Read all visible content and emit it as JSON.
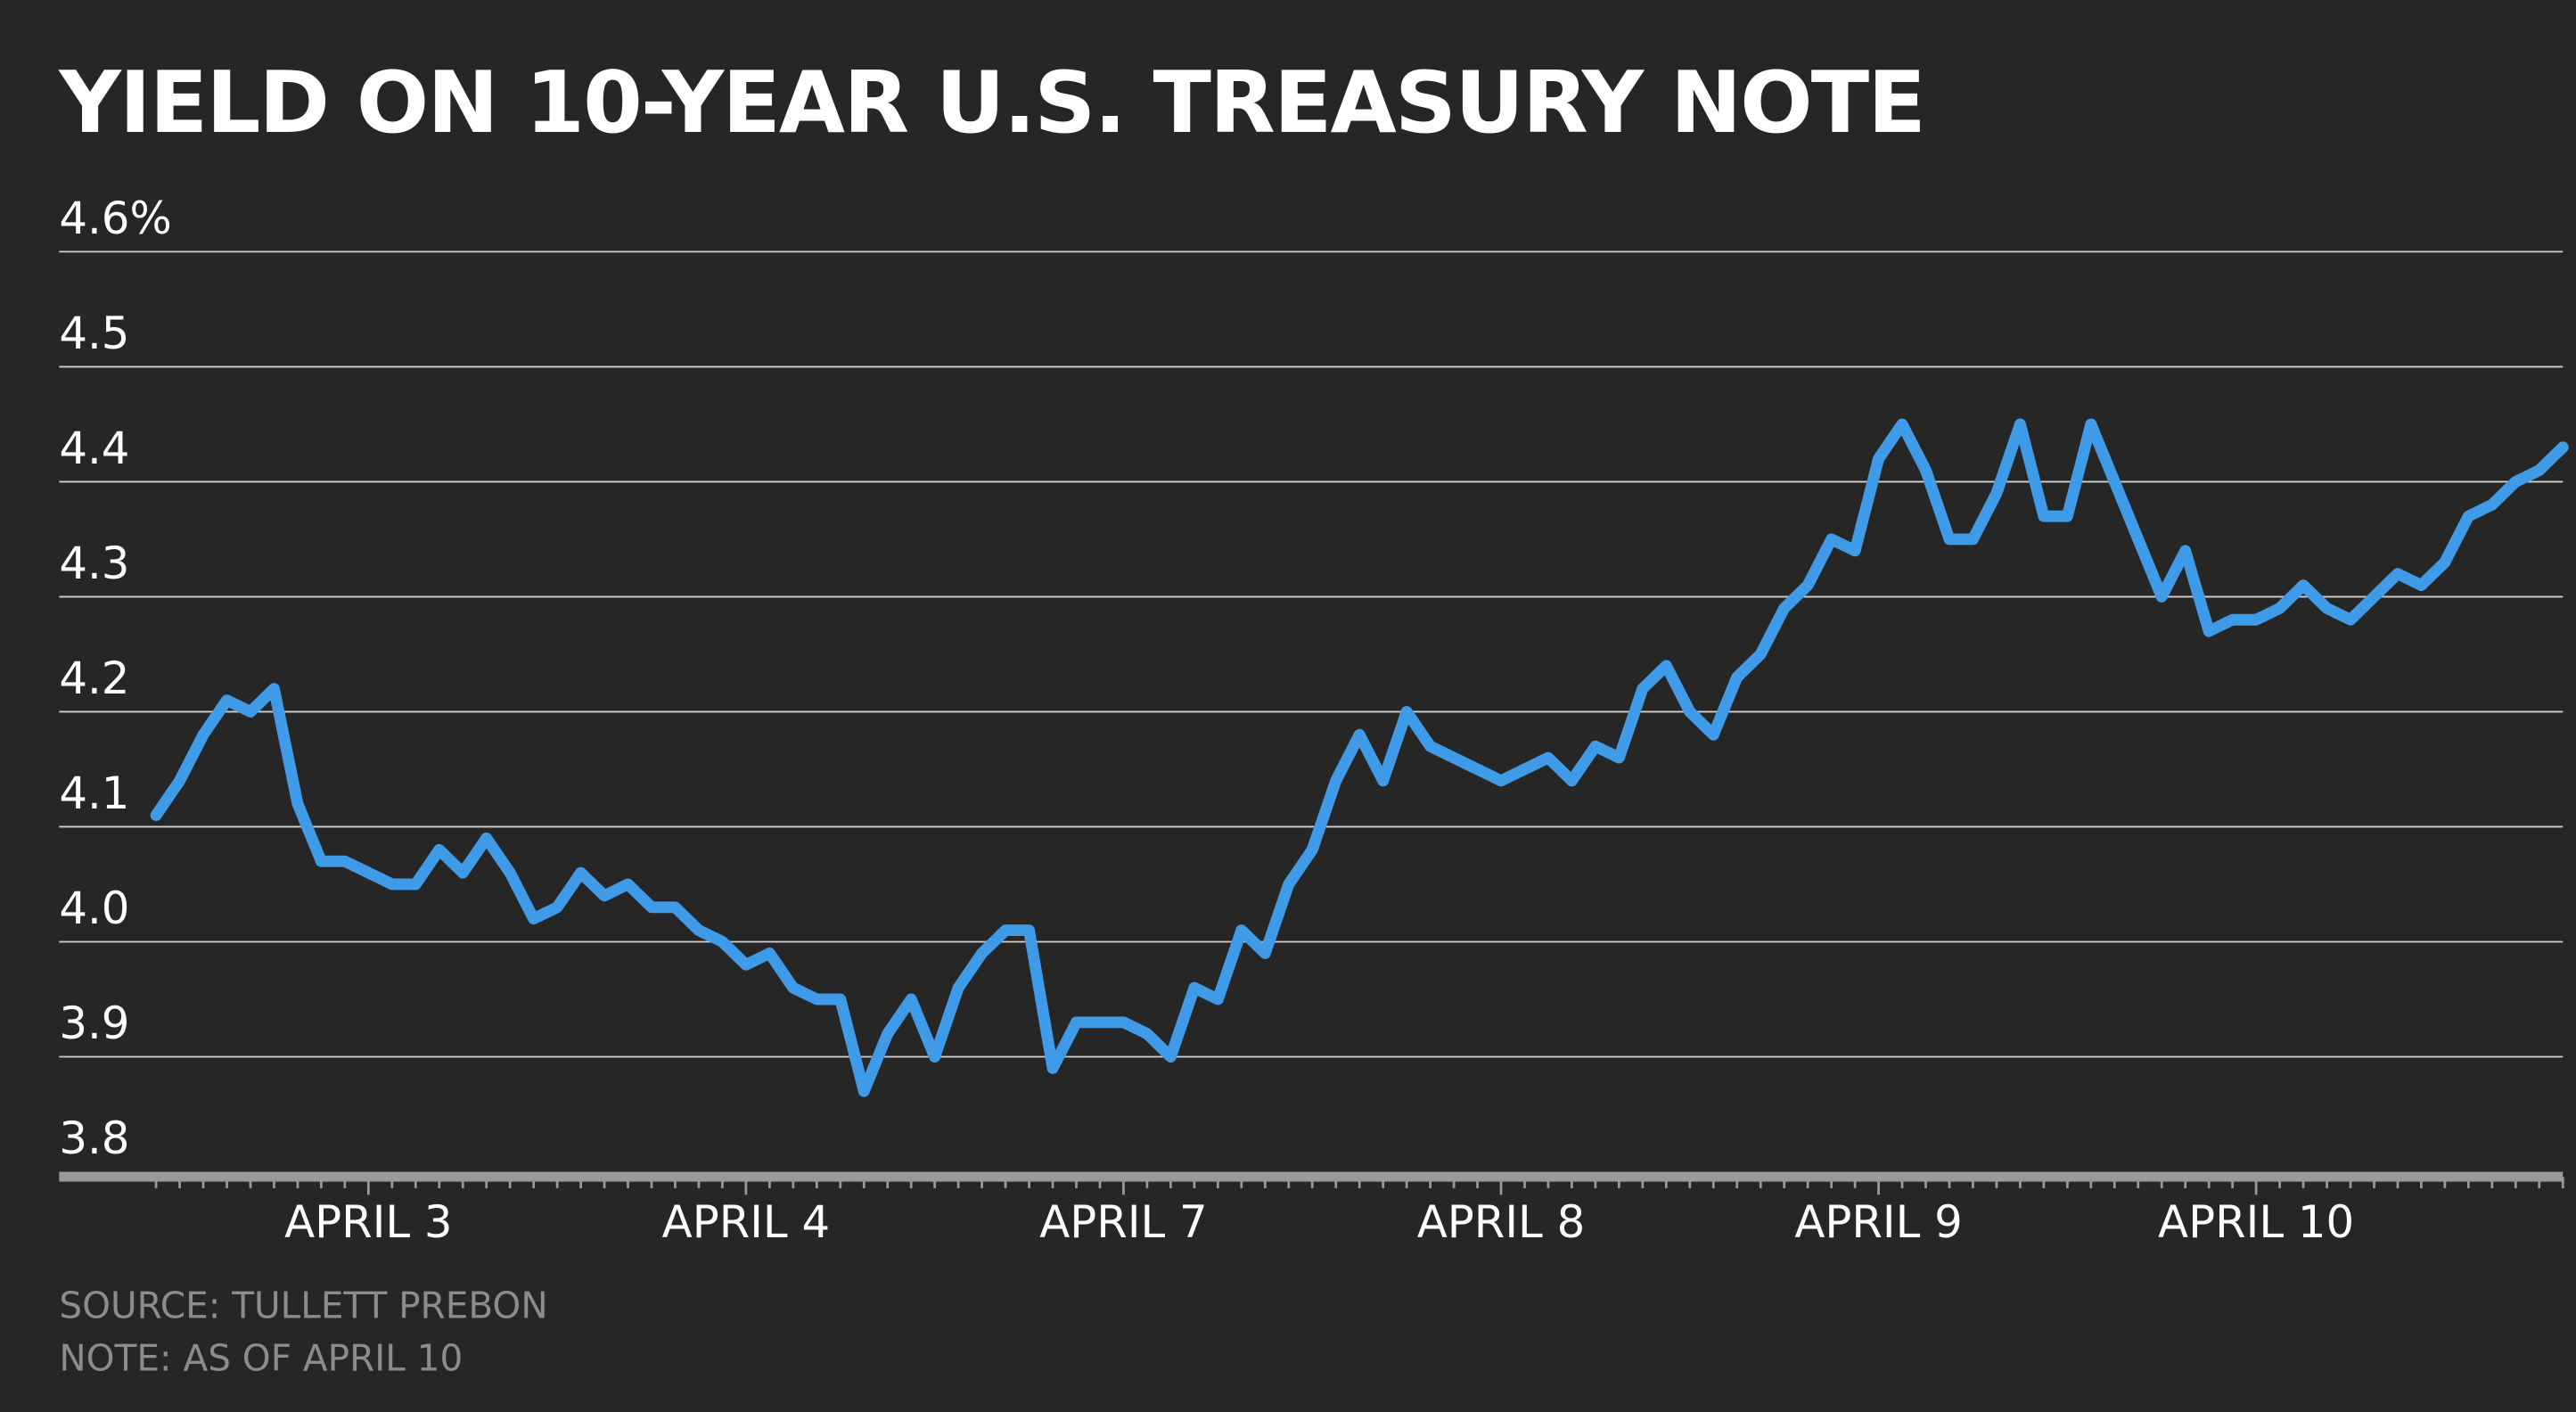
{
  "chart_data": {
    "type": "line",
    "title": "YIELD ON 10-YEAR U.S. TREASURY NOTE",
    "source": "SOURCE: TULLETT PREBON",
    "note": "NOTE: AS OF APRIL 10",
    "categories": [
      null,
      null,
      null,
      null,
      null,
      null,
      null,
      null,
      null,
      "APRIL 3",
      null,
      null,
      null,
      null,
      null,
      null,
      null,
      null,
      null,
      null,
      null,
      null,
      null,
      null,
      null,
      "APRIL 4",
      null,
      null,
      null,
      null,
      null,
      null,
      null,
      null,
      null,
      null,
      null,
      null,
      null,
      null,
      null,
      "APRIL 7",
      null,
      null,
      null,
      null,
      null,
      null,
      null,
      null,
      null,
      null,
      null,
      null,
      null,
      null,
      null,
      "APRIL 8",
      null,
      null,
      null,
      null,
      null,
      null,
      null,
      null,
      null,
      null,
      null,
      null,
      null,
      null,
      null,
      "APRIL 9",
      null,
      null,
      null,
      null,
      null,
      null,
      null,
      null,
      null,
      null,
      null,
      null,
      null,
      null,
      null,
      "APRIL 10",
      null,
      null,
      null,
      null,
      null,
      null,
      null,
      null,
      null,
      null,
      null,
      null,
      null
    ],
    "values": [
      4.11,
      4.14,
      4.18,
      4.21,
      4.2,
      4.22,
      4.12,
      4.07,
      4.07,
      4.06,
      4.05,
      4.05,
      4.08,
      4.06,
      4.09,
      4.06,
      4.02,
      4.03,
      4.06,
      4.04,
      4.05,
      4.03,
      4.03,
      4.01,
      4.0,
      3.98,
      3.99,
      3.96,
      3.95,
      3.95,
      3.87,
      3.92,
      3.95,
      3.9,
      3.96,
      3.99,
      4.01,
      4.01,
      3.89,
      3.93,
      3.93,
      3.93,
      3.92,
      3.9,
      3.96,
      3.95,
      4.01,
      3.99,
      4.05,
      4.08,
      4.14,
      4.18,
      4.14,
      4.2,
      4.17,
      4.16,
      4.15,
      4.14,
      4.15,
      4.16,
      4.14,
      4.17,
      4.16,
      4.22,
      4.24,
      4.2,
      4.18,
      4.23,
      4.25,
      4.29,
      4.31,
      4.35,
      4.34,
      4.42,
      4.45,
      4.41,
      4.35,
      4.35,
      4.39,
      4.45,
      4.37,
      4.37,
      4.45,
      4.4,
      4.35,
      4.3,
      4.34,
      4.27,
      4.28,
      4.28,
      4.29,
      4.31,
      4.29,
      4.28,
      4.3,
      4.32,
      4.31,
      4.33,
      4.37,
      4.38,
      4.4,
      4.41,
      4.43
    ],
    "color": "#3f9be8",
    "ylim": [
      3.8,
      4.6
    ],
    "yticks": [
      3.8,
      3.9,
      {
        "value": 4,
        "label": "4.0"
      },
      4.1,
      4.2,
      4.3,
      4.4,
      4.5,
      {
        "value": 4.6,
        "label": "4.6%"
      }
    ],
    "grid": true
  }
}
